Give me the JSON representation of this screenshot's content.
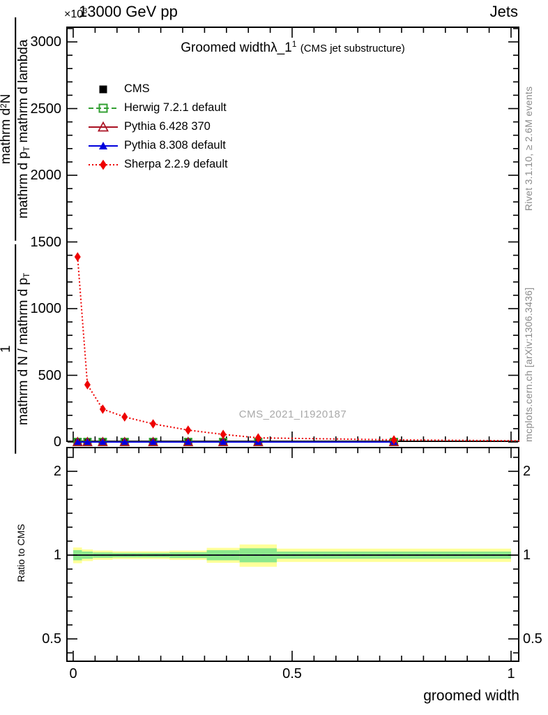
{
  "header": {
    "left": "13000 GeV pp",
    "right": "Jets",
    "exponent_base": "×10",
    "exponent_power": "3"
  },
  "title": {
    "main": "Groomed width",
    "math": "λ_1",
    "sup": "1",
    "paren": "(CMS jet substructure)"
  },
  "watermark": "CMS_2021_I1920187",
  "side_captions": {
    "top_right": "Rivet 3.1.10, ≥ 2.6M events",
    "bottom_right": "mcplots.cern.ch [arXiv:1306.3436]"
  },
  "axes": {
    "y_main": {
      "ticks": [
        0,
        500,
        1000,
        1500,
        2000,
        2500,
        3000
      ],
      "range": [
        0,
        3115
      ],
      "label_frac_upper": {
        "num_pre": "mathrm d",
        "num_sup": "2",
        "num_post": "N",
        "den_pre": "mathrm d p",
        "den_sub": "T",
        "den_post": " mathrm d lambda"
      },
      "label_frac_lower": {
        "num": "1",
        "den_pre": "mathrm d N / mathrm d p",
        "den_sub": "T",
        "den_post": ""
      }
    },
    "y_ratio": {
      "label": "Ratio to CMS",
      "ticks": [
        2,
        1,
        0.5
      ],
      "scale": "log",
      "range": [
        0.41,
        2.45
      ]
    },
    "x": {
      "label": "groomed width",
      "ticks": [
        0,
        0.5,
        1
      ],
      "range": [
        0,
        1
      ],
      "minor_step": 0.05
    }
  },
  "legend": [
    {
      "label": "CMS",
      "marker": "filled-square",
      "color": "#000000",
      "line": "none"
    },
    {
      "label": "Herwig 7.2.1 default",
      "marker": "open-square",
      "color": "#33a033",
      "line": "dashed"
    },
    {
      "label": "Pythia 6.428 370",
      "marker": "open-triangle",
      "color": "#aa1122",
      "line": "solid"
    },
    {
      "label": "Pythia 8.308 default",
      "marker": "filled-triangle",
      "color": "#0000dd",
      "line": "solid"
    },
    {
      "label": "Sherpa 2.2.9 default",
      "marker": "filled-diamond",
      "color": "#ee0000",
      "line": "dotted"
    }
  ],
  "colors": {
    "frame": "#000000",
    "band_yellow": "#ffff99",
    "band_green": "#8ce88c",
    "ratio_baseline": "#000000",
    "watermark": "#a9a9a9",
    "side_caption": "#8a8a8a"
  },
  "chart_data": {
    "type": "line",
    "title": "Groomed width λ_1^1 (CMS jet substructure)",
    "xlabel": "groomed width",
    "ylabel": "1/(mathrm d N/mathrm d p_T) mathrm d^2 N/(mathrm d p_T mathrm d lambda)",
    "y_unit_exponent": "×10^3",
    "xlim": [
      0,
      1
    ],
    "ylim": [
      0,
      3115
    ],
    "ratio_ylim_log": [
      0.41,
      2.45
    ],
    "bin_edges": [
      0,
      0.02,
      0.045,
      0.09,
      0.145,
      0.22,
      0.305,
      0.38,
      0.465,
      1.0
    ],
    "x_centers": [
      0.01,
      0.0325,
      0.0675,
      0.1175,
      0.1825,
      0.2625,
      0.3425,
      0.4225,
      0.7325
    ],
    "series": [
      {
        "name": "CMS",
        "marker": "filled-square",
        "color": "#000000",
        "line": "none",
        "values": [
          0,
          0,
          0,
          0,
          0,
          0,
          0,
          0,
          0
        ]
      },
      {
        "name": "Herwig 7.2.1 default",
        "marker": "open-square",
        "color": "#33a033",
        "line": "dashed",
        "values": [
          0,
          0,
          0,
          0,
          0,
          0,
          0,
          0,
          0
        ]
      },
      {
        "name": "Pythia 6.428 370",
        "marker": "open-triangle",
        "color": "#aa1122",
        "line": "solid",
        "values": [
          0,
          0,
          0,
          0,
          0,
          0,
          0,
          0,
          0
        ]
      },
      {
        "name": "Pythia 8.308 default",
        "marker": "filled-triangle",
        "color": "#0000dd",
        "line": "solid",
        "values": [
          0,
          0,
          0,
          0,
          0,
          0,
          0,
          0,
          0
        ]
      },
      {
        "name": "Sherpa 2.2.9 default",
        "marker": "filled-diamond",
        "color": "#ee0000",
        "line": "dotted",
        "values": [
          1388,
          429,
          246,
          188,
          136,
          89,
          57,
          31,
          16
        ],
        "line_end": [
          1.019,
          9
        ]
      }
    ],
    "ratio": {
      "baseline": 1,
      "yellow_half_width": [
        0.065,
        0.048,
        0.038,
        0.032,
        0.032,
        0.038,
        0.062,
        0.092,
        0.055
      ],
      "green_half_width": [
        0.042,
        0.03,
        0.022,
        0.019,
        0.019,
        0.024,
        0.042,
        0.058,
        0.03
      ],
      "model_ratio_series": [
        {
          "name": "Pythia 6.428 370",
          "color": "#aa1122",
          "line": "solid",
          "values": [
            1,
            1,
            1,
            1,
            1,
            1,
            1,
            1,
            1
          ]
        },
        {
          "name": "Pythia 8.308 default",
          "color": "#0000dd",
          "line": "solid",
          "values": [
            1,
            1,
            1,
            1,
            1,
            1,
            1,
            1,
            1
          ]
        },
        {
          "name": "Herwig 7.2.1 default",
          "color": "#33a033",
          "line": "dashed",
          "values": [
            1,
            1,
            1,
            1,
            1,
            1,
            1,
            1,
            1
          ]
        }
      ]
    }
  }
}
